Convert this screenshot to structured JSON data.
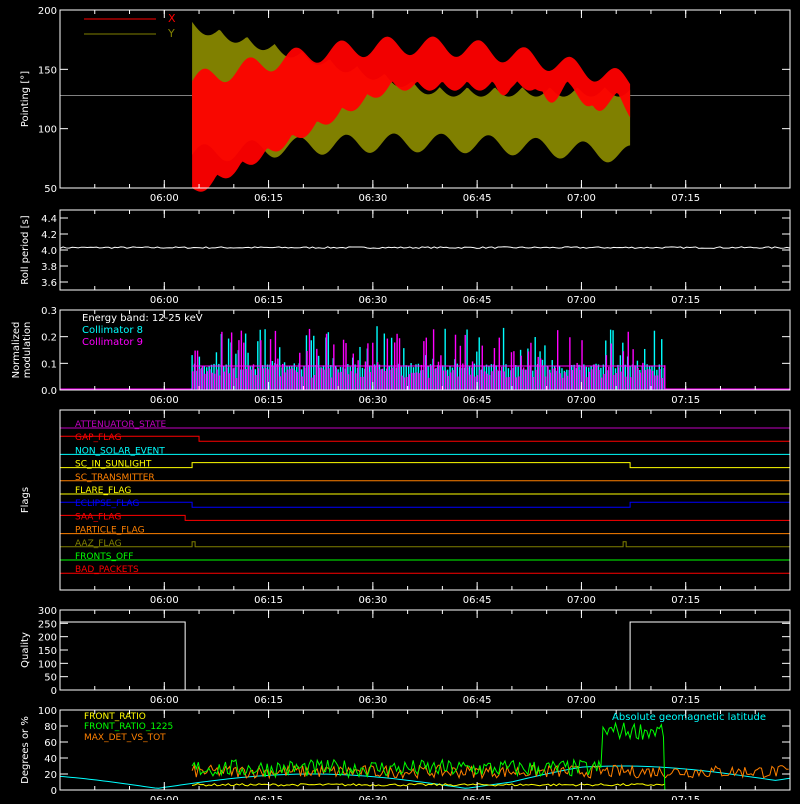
{
  "time_ticks": [
    "06:00",
    "06:15",
    "06:30",
    "06:45",
    "07:00",
    "07:15"
  ],
  "colors": {
    "axis": "#ffffff",
    "red": "#ff0000",
    "olive": "#808000",
    "white": "#ffffff",
    "cyan": "#00ffff",
    "magenta": "#ff00ff",
    "yellow": "#ffff00",
    "green": "#00ff00",
    "orange": "#ff8000",
    "blue": "#0000ff",
    "purple": "#c000c0"
  },
  "chart_data": [
    {
      "type": "line",
      "ylabel": "Pointing [°]",
      "ylim": [
        50,
        200
      ],
      "yticks": [
        "50",
        "100",
        "150",
        "200"
      ],
      "legend": [
        "X",
        "Y"
      ],
      "baseline": 128,
      "xlim_time": [
        "05:45",
        "07:30"
      ],
      "active_time": [
        "06:04",
        "07:07"
      ],
      "series": [
        {
          "name": "X",
          "envelope_low_start": 50,
          "envelope_low_end": 140,
          "envelope_high_start": 150,
          "envelope_high_end": 170
        },
        {
          "name": "Y",
          "envelope_low_start": 80,
          "envelope_low_end": 85,
          "envelope_high_start": 190,
          "envelope_high_end": 140
        }
      ]
    },
    {
      "type": "line",
      "ylabel": "Roll period [s]",
      "ylim": [
        3.5,
        4.5
      ],
      "yticks": [
        "3.6",
        "3.8",
        "4.0",
        "4.2",
        "4.4"
      ],
      "series": [
        {
          "value": 4.03
        }
      ]
    },
    {
      "type": "bar",
      "ylabel": "Normalized modulation",
      "ylim": [
        0,
        0.3
      ],
      "yticks": [
        "0.0",
        "0.1",
        "0.2",
        "0.3"
      ],
      "annotations": [
        "Energy band: 12-25 keV",
        "Collimator 8",
        "Collimator 9"
      ],
      "active_time": [
        "06:04",
        "07:12"
      ],
      "baseline_value": 0.09
    },
    {
      "type": "table",
      "ylabel": "Flags",
      "flags": [
        {
          "name": "ATTENUATOR_STATE",
          "color": "#c000c0",
          "steps": []
        },
        {
          "name": "GAP_FLAG",
          "color": "#ff0000",
          "steps": [
            [
              "05:45",
              "06:05",
              1
            ],
            [
              "06:05",
              "07:30",
              0
            ]
          ]
        },
        {
          "name": "NON_SOLAR_EVENT",
          "color": "#00ffff",
          "steps": []
        },
        {
          "name": "SC_IN_SUNLIGHT",
          "color": "#ffff00",
          "steps": [
            [
              "05:45",
              "06:04",
              0
            ],
            [
              "06:04",
              "07:07",
              1
            ],
            [
              "07:07",
              "07:30",
              0
            ]
          ]
        },
        {
          "name": "SC_TRANSMITTER",
          "color": "#ff8000",
          "steps": []
        },
        {
          "name": "FLARE_FLAG",
          "color": "#ffff00",
          "steps": []
        },
        {
          "name": "ECLIPSE_FLAG",
          "color": "#0000ff",
          "steps": [
            [
              "05:45",
              "06:04",
              1
            ],
            [
              "06:04",
              "07:07",
              0
            ],
            [
              "07:07",
              "07:30",
              1
            ]
          ]
        },
        {
          "name": "SAA_FLAG",
          "color": "#ff0000",
          "steps": [
            [
              "05:45",
              "06:03",
              1
            ],
            [
              "06:03",
              "07:30",
              0
            ]
          ]
        },
        {
          "name": "PARTICLE_FLAG",
          "color": "#ff8000",
          "steps": []
        },
        {
          "name": "AAZ_FLAG",
          "color": "#808000",
          "steps": [
            [
              "06:04",
              "06:04",
              1
            ],
            [
              "07:06",
              "07:06",
              1
            ]
          ]
        },
        {
          "name": "FRONTS_OFF",
          "color": "#00ff00",
          "steps": []
        },
        {
          "name": "BAD_PACKETS",
          "color": "#ff0000",
          "steps": []
        }
      ]
    },
    {
      "type": "line",
      "ylabel": "Quality",
      "ylim": [
        0,
        300
      ],
      "yticks": [
        "0",
        "50",
        "100",
        "150",
        "200",
        "250",
        "300"
      ],
      "series": [
        {
          "segments": [
            [
              "05:45",
              "06:03",
              255
            ],
            [
              "06:03",
              "07:07",
              0
            ],
            [
              "07:07",
              "07:30",
              255
            ]
          ]
        }
      ]
    },
    {
      "type": "line",
      "ylabel": "Degrees or %",
      "ylim": [
        0,
        100
      ],
      "yticks": [
        "0",
        "20",
        "40",
        "60",
        "80",
        "100"
      ],
      "legend": [
        "FRONT_RATIO",
        "FRONT_RATIO_1225",
        "MAX_DET_VS_TOT"
      ],
      "annotation": "Absolute geomagnetic latitude",
      "series": [
        {
          "name": "FRONT_RATIO",
          "level": 5,
          "active_time": [
            "06:04",
            "07:12"
          ]
        },
        {
          "name": "FRONT_RATIO_1225",
          "level": 28,
          "active_time": [
            "06:04",
            "07:12"
          ],
          "high_time": [
            "07:03",
            "07:12"
          ],
          "high_level": 75
        },
        {
          "name": "MAX_DET_VS_TOT",
          "level": 23,
          "active_time": [
            "06:04",
            "07:30"
          ]
        }
      ]
    }
  ]
}
